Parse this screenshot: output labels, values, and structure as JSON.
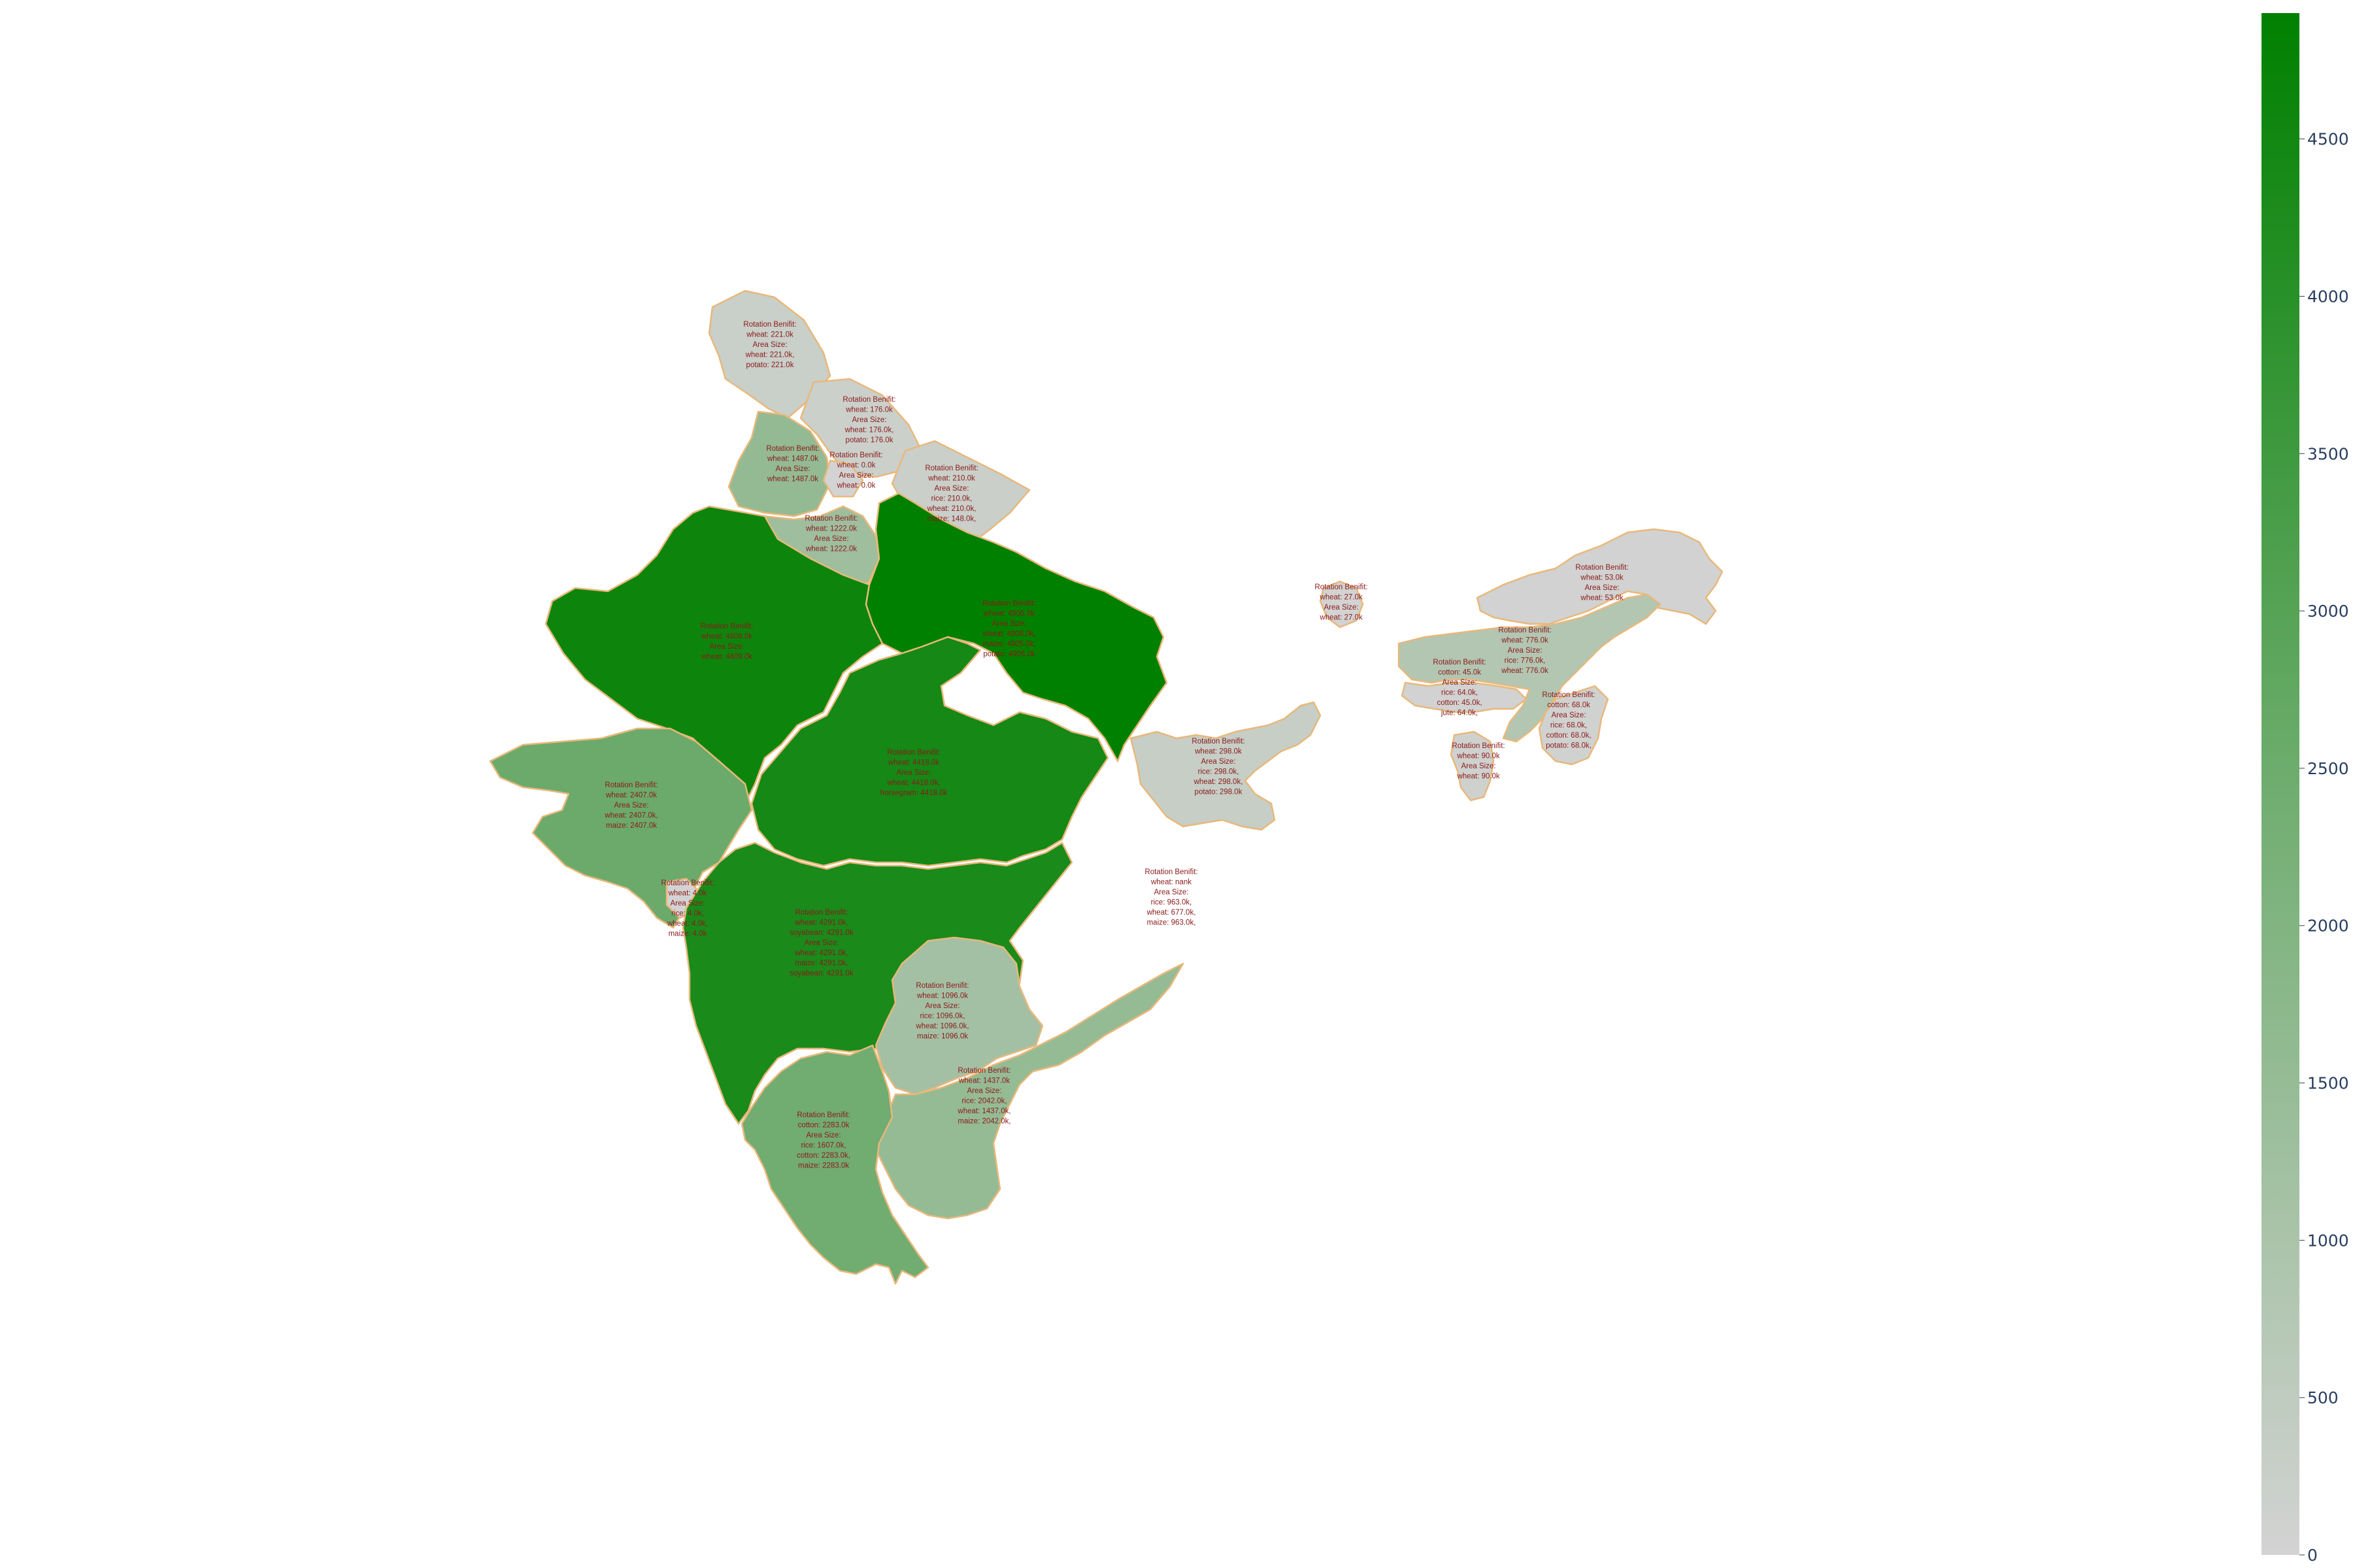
{
  "colorbar": {
    "ticks": [
      "0",
      "500",
      "1000",
      "1500",
      "2000",
      "2500",
      "3000",
      "3500",
      "4000",
      "4500"
    ],
    "min": 0,
    "max": 4900,
    "colors": {
      "low": "#d3d3d3",
      "high": "#008000",
      "border": "#e8b87a",
      "label": "#8b1a1a"
    }
  },
  "states": [
    {
      "id": "jammu-kashmir",
      "value": 221,
      "lines": [
        "Rotation Benifit:",
        "wheat: 221.0k",
        "Area Size:",
        "wheat: 221.0k,",
        "potato: 221.0k"
      ]
    },
    {
      "id": "himachal",
      "value": 176,
      "lines": [
        "Rotation Benifit:",
        "wheat: 176.0k",
        "Area Size:",
        "wheat: 176.0k,",
        "potato: 176.0k"
      ]
    },
    {
      "id": "punjab",
      "value": 1487,
      "lines": [
        "Rotation Benifit:",
        "wheat: 1487.0k",
        "Area Size:",
        "wheat: 1487.0k"
      ]
    },
    {
      "id": "chandigarh",
      "value": 0,
      "lines": [
        "Rotation Benifit:",
        "wheat: 0.0k",
        "Area Size:",
        "wheat: 0.0k"
      ]
    },
    {
      "id": "uttarakhand",
      "value": 210,
      "lines": [
        "Rotation Benifit:",
        "wheat: 210.0k",
        "Area Size:",
        "rice: 210.0k,",
        "wheat: 210.0k,",
        "maize: 148.0k,"
      ]
    },
    {
      "id": "haryana",
      "value": 1222,
      "lines": [
        "Rotation Benifit:",
        "wheat: 1222.0k",
        "Area Size:",
        "wheat: 1222.0k"
      ]
    },
    {
      "id": "rajasthan",
      "value": 4609,
      "lines": [
        "Rotation Benifit:",
        "wheat: 4609.0k",
        "Area Size:",
        "wheat: 4609.0k"
      ]
    },
    {
      "id": "uttar-pradesh",
      "value": 4905,
      "lines": [
        "Rotation Benifit:",
        "wheat: 4905.0k",
        "Area Size:",
        "wheat: 4905.0k,",
        "maize: 4905.0k,",
        "potato: 4905.0k"
      ]
    },
    {
      "id": "madhya-pradesh",
      "value": 4418,
      "lines": [
        "Rotation Benifit:",
        "wheat: 4418.0k",
        "Area Size:",
        "wheat: 4418.0k,",
        "horsegram: 4418.0k"
      ]
    },
    {
      "id": "gujarat",
      "value": 2407,
      "lines": [
        "Rotation Benifit:",
        "wheat: 2407.0k",
        "Area Size:",
        "wheat: 2407.0k,",
        "maize: 2407.0k"
      ]
    },
    {
      "id": "dadra",
      "value": 4,
      "lines": [
        "Rotation Benifit:",
        "wheat: 4.0k",
        "Area Size:",
        "rice: 4.0k,",
        "wheat: 4.0k,",
        "maize: 4.0k"
      ]
    },
    {
      "id": "maharashtra",
      "value": 4291,
      "lines": [
        "Rotation Benifit:",
        "wheat: 4291.0k,",
        "soyabean: 4291.0k",
        "Area Size:",
        "wheat: 4291.0k,",
        "maize: 4291.0k,",
        "soyabean: 4291.0k"
      ]
    },
    {
      "id": "telangana",
      "value": 1096,
      "lines": [
        "Rotation Benifit:",
        "wheat: 1096.0k",
        "Area Size:",
        "rice: 1096.0k,",
        "wheat: 1096.0k,",
        "maize: 1096.0k"
      ]
    },
    {
      "id": "andhra-pradesh",
      "value": 1437,
      "lines": [
        "Rotation Benifit:",
        "wheat: 1437.0k",
        "Area Size:",
        "rice: 2042.0k,",
        "wheat: 1437.0k,",
        "maize: 2042.0k,"
      ]
    },
    {
      "id": "karnataka",
      "value": 2283,
      "lines": [
        "Rotation Benifit:",
        "cotton: 2283.0k",
        "Area Size:",
        "rice: 1607.0k,",
        "cotton: 2283.0k,",
        "maize: 2283.0k"
      ]
    },
    {
      "id": "odisha",
      "value": null,
      "lines": [
        "Rotation Benifit:",
        "wheat: nank",
        "Area Size:",
        "rice: 963.0k,",
        "wheat: 677.0k,",
        "maize: 963.0k,"
      ]
    },
    {
      "id": "jharkhand",
      "value": 298,
      "lines": [
        "Rotation Benifit:",
        "wheat: 298.0k",
        "Area Size:",
        "rice: 298.0k,",
        "wheat: 298.0k,",
        "potato: 298.0k"
      ]
    },
    {
      "id": "sikkim",
      "value": 27,
      "lines": [
        "Rotation Benifit:",
        "wheat: 27.0k",
        "Area Size:",
        "wheat: 27.0k"
      ]
    },
    {
      "id": "arunachal",
      "value": 53,
      "lines": [
        "Rotation Benifit:",
        "wheat: 53.0k",
        "Area Size:",
        "wheat: 53.0k"
      ]
    },
    {
      "id": "assam",
      "value": 776,
      "lines": [
        "Rotation Benifit:",
        "wheat: 776.0k",
        "Area Size:",
        "rice: 776.0k,",
        "wheat: 776.0k"
      ]
    },
    {
      "id": "meghalaya",
      "value": 45,
      "lines": [
        "Rotation Benifit:",
        "cotton: 45.0k",
        "Area Size:",
        "rice: 64.0k,",
        "cotton: 45.0k,",
        "jute: 64.0k,"
      ]
    },
    {
      "id": "manipur",
      "value": 68,
      "lines": [
        "Rotation Benifit:",
        "cotton: 68.0k",
        "Area Size:",
        "rice: 68.0k,",
        "cotton: 68.0k,",
        "potato: 68.0k,"
      ]
    },
    {
      "id": "tripura",
      "value": 90,
      "lines": [
        "Rotation Benifit:",
        "wheat: 90.0k",
        "Area Size:",
        "wheat: 90.0k"
      ]
    }
  ]
}
